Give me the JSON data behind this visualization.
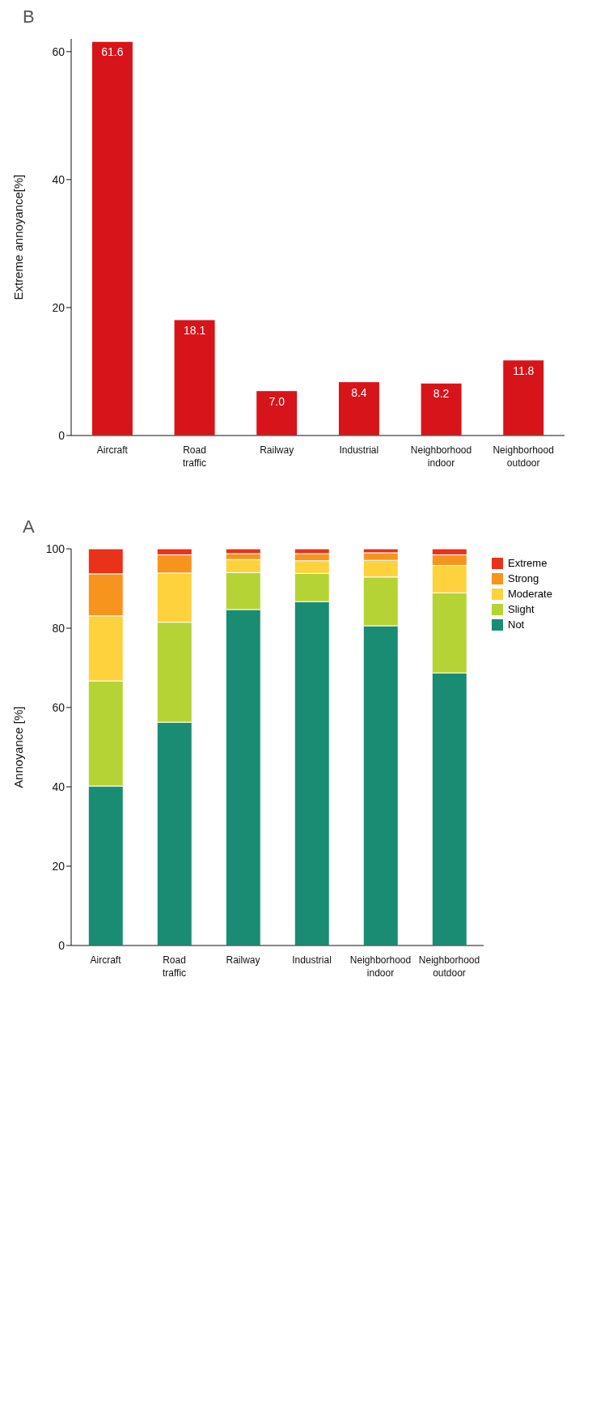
{
  "chart_data": [
    {
      "type": "bar",
      "title": "A",
      "ylabel": "Annoyance [%]",
      "categories": [
        "Aircraft",
        "Road traffic",
        "Railway",
        "Industrial",
        "Neighborhood indoor",
        "Neighborhood outdoor"
      ],
      "stacked": true,
      "ylim": [
        0,
        100
      ],
      "yticks": [
        0,
        20,
        40,
        60,
        80,
        100
      ],
      "grid": false,
      "legend": "right",
      "series": [
        {
          "name": "Not",
          "color": "#1a8c73",
          "values": [
            40.2,
            56.3,
            84.7,
            86.7,
            80.6,
            68.7
          ]
        },
        {
          "name": "Slight",
          "color": "#b5d334",
          "values": [
            26.5,
            25.2,
            9.3,
            7.1,
            12.3,
            20.2
          ]
        },
        {
          "name": "Moderate",
          "color": "#fdd23c",
          "values": [
            16.4,
            12.4,
            3.3,
            3.2,
            4.2,
            6.9
          ]
        },
        {
          "name": "Strong",
          "color": "#f7941d",
          "values": [
            10.6,
            4.6,
            1.5,
            1.8,
            1.9,
            2.7
          ]
        },
        {
          "name": "Extreme",
          "color": "#e8321a",
          "values": [
            6.3,
            1.5,
            1.2,
            1.2,
            1.0,
            1.5
          ]
        }
      ]
    },
    {
      "type": "bar",
      "title": "B",
      "ylabel": "Extreme annoyance[%]",
      "categories": [
        "Aircraft",
        "Road traffic",
        "Railway",
        "Industrial",
        "Neighborhood indoor",
        "Neighborhood outdoor"
      ],
      "ylim": [
        0,
        62
      ],
      "yticks": [
        0,
        20,
        40,
        60
      ],
      "grid": false,
      "legend": false,
      "series": [
        {
          "color": "#d7141a",
          "values": [
            61.6,
            18.1,
            7.0,
            8.4,
            8.2,
            11.8
          ],
          "value_labels": [
            "61.6",
            "18.1",
            "7.0",
            "8.4",
            "8.2",
            "11.8"
          ]
        }
      ]
    }
  ]
}
